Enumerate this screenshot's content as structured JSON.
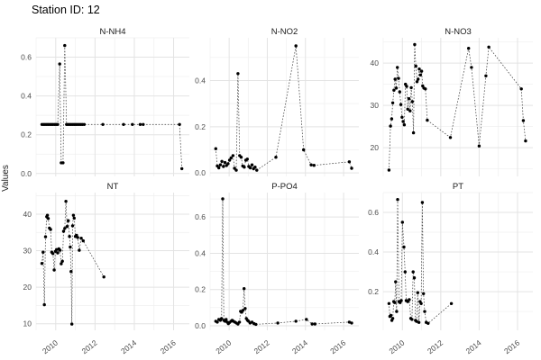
{
  "title": "Station ID: 12",
  "ylabel": "Values",
  "chart_data": {
    "type": "scatter",
    "title": "Station ID: 12",
    "ylabel": "Values",
    "xlabel": "",
    "line_style": "dotted",
    "legend": "none",
    "grid": "on",
    "point_color": "#000000",
    "line_color": "#4d4d4d",
    "grid_major_color": "#e3e3e3",
    "grid_minor_color": "#efefef",
    "axis_text_color": "#4d4d4d",
    "facet_title_color": "#1a1a1a",
    "x_domain": [
      2009.0,
      2016.8
    ],
    "xtick_values": [
      2010,
      2012,
      2014,
      2016
    ],
    "xtick_labels": [
      "2010",
      "2012",
      "2014",
      "2016"
    ],
    "xminor_values": [
      2009,
      2011,
      2013,
      2015
    ],
    "facets": [
      {
        "label": "N-NH4",
        "ydomain": [
          -0.015,
          0.7
        ],
        "ytick_values": [
          0.0,
          0.2,
          0.4,
          0.6
        ],
        "ytick_labels": [
          "0.0",
          "0.2",
          "0.4",
          "0.6"
        ],
        "points": [
          [
            2009.3,
            0.253
          ],
          [
            2009.38,
            0.253
          ],
          [
            2009.46,
            0.253
          ],
          [
            2009.54,
            0.253
          ],
          [
            2009.62,
            0.253
          ],
          [
            2009.7,
            0.253
          ],
          [
            2009.78,
            0.253
          ],
          [
            2009.86,
            0.253
          ],
          [
            2009.94,
            0.253
          ],
          [
            2010.02,
            0.253
          ],
          [
            2010.1,
            0.253
          ],
          [
            2010.2,
            0.565
          ],
          [
            2010.28,
            0.055
          ],
          [
            2010.37,
            0.055
          ],
          [
            2010.46,
            0.66
          ],
          [
            2010.55,
            0.253
          ],
          [
            2010.63,
            0.253
          ],
          [
            2010.71,
            0.253
          ],
          [
            2010.79,
            0.253
          ],
          [
            2010.87,
            0.253
          ],
          [
            2010.95,
            0.253
          ],
          [
            2011.03,
            0.253
          ],
          [
            2011.11,
            0.253
          ],
          [
            2011.2,
            0.253
          ],
          [
            2011.28,
            0.253
          ],
          [
            2011.36,
            0.253
          ],
          [
            2011.45,
            0.253
          ],
          [
            2012.4,
            0.253
          ],
          [
            2013.45,
            0.253
          ],
          [
            2013.9,
            0.253
          ],
          [
            2014.3,
            0.253
          ],
          [
            2014.45,
            0.253
          ],
          [
            2016.3,
            0.253
          ],
          [
            2016.42,
            0.025
          ]
        ]
      },
      {
        "label": "N-NO2",
        "ydomain": [
          -0.015,
          0.585
        ],
        "ytick_values": [
          0.0,
          0.2,
          0.4
        ],
        "ytick_labels": [
          "0.0",
          "0.2",
          "0.4"
        ],
        "points": [
          [
            2009.3,
            0.105
          ],
          [
            2009.38,
            0.03
          ],
          [
            2009.46,
            0.022
          ],
          [
            2009.54,
            0.035
          ],
          [
            2009.62,
            0.05
          ],
          [
            2009.7,
            0.028
          ],
          [
            2009.78,
            0.045
          ],
          [
            2009.86,
            0.032
          ],
          [
            2009.94,
            0.04
          ],
          [
            2010.02,
            0.055
          ],
          [
            2010.1,
            0.065
          ],
          [
            2010.2,
            0.075
          ],
          [
            2010.28,
            0.02
          ],
          [
            2010.37,
            0.012
          ],
          [
            2010.46,
            0.43
          ],
          [
            2010.55,
            0.075
          ],
          [
            2010.63,
            0.068
          ],
          [
            2010.71,
            0.03
          ],
          [
            2010.79,
            0.025
          ],
          [
            2010.87,
            0.055
          ],
          [
            2010.95,
            0.06
          ],
          [
            2011.03,
            0.028
          ],
          [
            2011.11,
            0.022
          ],
          [
            2011.2,
            0.035
          ],
          [
            2011.28,
            0.018
          ],
          [
            2011.36,
            0.025
          ],
          [
            2011.45,
            0.012
          ],
          [
            2012.45,
            0.068
          ],
          [
            2013.5,
            0.55
          ],
          [
            2013.9,
            0.1
          ],
          [
            2014.3,
            0.035
          ],
          [
            2014.45,
            0.033
          ],
          [
            2016.3,
            0.048
          ],
          [
            2016.42,
            0.02
          ]
        ]
      },
      {
        "label": "N-NO3",
        "ydomain": [
          13.2,
          46.0
        ],
        "ytick_values": [
          20,
          30,
          40
        ],
        "ytick_labels": [
          "20",
          "30",
          "40"
        ],
        "points": [
          [
            2009.3,
            14.7
          ],
          [
            2009.38,
            25.1
          ],
          [
            2009.44,
            26.8
          ],
          [
            2009.5,
            30.6
          ],
          [
            2009.56,
            33.6
          ],
          [
            2009.62,
            36.2
          ],
          [
            2009.68,
            34.1
          ],
          [
            2009.74,
            39.0
          ],
          [
            2009.8,
            36.4
          ],
          [
            2009.86,
            33.2
          ],
          [
            2009.92,
            30.2
          ],
          [
            2009.98,
            27.2
          ],
          [
            2010.04,
            26.2
          ],
          [
            2010.1,
            25.4
          ],
          [
            2010.16,
            35.0
          ],
          [
            2010.22,
            34.5
          ],
          [
            2010.28,
            29.1
          ],
          [
            2010.34,
            31.6
          ],
          [
            2010.4,
            28.7
          ],
          [
            2010.46,
            34.2
          ],
          [
            2010.52,
            30.9
          ],
          [
            2010.58,
            23.5
          ],
          [
            2010.64,
            44.4
          ],
          [
            2010.7,
            39.3
          ],
          [
            2010.76,
            35.6
          ],
          [
            2010.82,
            36.2
          ],
          [
            2010.88,
            38.6
          ],
          [
            2010.94,
            37.2
          ],
          [
            2011.0,
            38.1
          ],
          [
            2011.06,
            34.6
          ],
          [
            2011.12,
            34.1
          ],
          [
            2011.2,
            33.9
          ],
          [
            2011.3,
            26.5
          ],
          [
            2012.5,
            22.4
          ],
          [
            2013.45,
            43.5
          ],
          [
            2013.6,
            39.0
          ],
          [
            2014.0,
            20.4
          ],
          [
            2014.35,
            37.0
          ],
          [
            2014.5,
            43.8
          ],
          [
            2016.2,
            33.9
          ],
          [
            2016.3,
            26.4
          ],
          [
            2016.42,
            21.6
          ]
        ]
      },
      {
        "label": "NT",
        "ydomain": [
          8.2,
          45.9
        ],
        "ytick_values": [
          10,
          20,
          30,
          40
        ],
        "ytick_labels": [
          "10",
          "20",
          "30",
          "40"
        ],
        "points": [
          [
            2009.3,
            26.5
          ],
          [
            2009.36,
            29.6
          ],
          [
            2009.42,
            15.2
          ],
          [
            2009.48,
            33.8
          ],
          [
            2009.54,
            39.3
          ],
          [
            2009.58,
            39.7
          ],
          [
            2009.62,
            38.8
          ],
          [
            2009.68,
            36.2
          ],
          [
            2009.74,
            35.8
          ],
          [
            2009.8,
            29.6
          ],
          [
            2009.86,
            29.2
          ],
          [
            2009.92,
            24.7
          ],
          [
            2009.98,
            29.8
          ],
          [
            2010.04,
            30.3
          ],
          [
            2010.1,
            29.4
          ],
          [
            2010.16,
            30.5
          ],
          [
            2010.22,
            30.1
          ],
          [
            2010.28,
            26.4
          ],
          [
            2010.34,
            27.1
          ],
          [
            2010.4,
            35.3
          ],
          [
            2010.46,
            36.1
          ],
          [
            2010.52,
            43.5
          ],
          [
            2010.58,
            36.6
          ],
          [
            2010.64,
            38.2
          ],
          [
            2010.7,
            33.9
          ],
          [
            2010.74,
            31.0
          ],
          [
            2010.78,
            24.3
          ],
          [
            2010.82,
            9.9
          ],
          [
            2010.86,
            36.8
          ],
          [
            2010.9,
            39.7
          ],
          [
            2010.94,
            38.9
          ],
          [
            2011.0,
            33.9
          ],
          [
            2011.06,
            34.2
          ],
          [
            2011.12,
            33.6
          ],
          [
            2011.2,
            30.1
          ],
          [
            2011.3,
            33.4
          ],
          [
            2011.4,
            32.7
          ],
          [
            2012.45,
            22.8
          ]
        ]
      },
      {
        "label": "P-PO4",
        "ydomain": [
          -0.025,
          0.735
        ],
        "ytick_values": [
          0.0,
          0.2,
          0.4,
          0.6
        ],
        "ytick_labels": [
          "0.0",
          "0.2",
          "0.4",
          "0.6"
        ],
        "points": [
          [
            2009.3,
            0.025
          ],
          [
            2009.38,
            0.02
          ],
          [
            2009.46,
            0.035
          ],
          [
            2009.54,
            0.03
          ],
          [
            2009.6,
            0.04
          ],
          [
            2009.66,
            0.7
          ],
          [
            2009.72,
            0.03
          ],
          [
            2009.78,
            0.025
          ],
          [
            2009.84,
            0.035
          ],
          [
            2009.9,
            0.02
          ],
          [
            2009.96,
            0.012
          ],
          [
            2010.02,
            0.018
          ],
          [
            2010.1,
            0.025
          ],
          [
            2010.16,
            0.03
          ],
          [
            2010.22,
            0.025
          ],
          [
            2010.3,
            0.02
          ],
          [
            2010.38,
            0.015
          ],
          [
            2010.46,
            0.01
          ],
          [
            2010.54,
            0.02
          ],
          [
            2010.6,
            0.08
          ],
          [
            2010.66,
            0.075
          ],
          [
            2010.72,
            0.085
          ],
          [
            2010.78,
            0.205
          ],
          [
            2010.84,
            0.095
          ],
          [
            2010.9,
            0.04
          ],
          [
            2010.96,
            0.03
          ],
          [
            2011.02,
            0.025
          ],
          [
            2011.1,
            0.015
          ],
          [
            2011.2,
            0.02
          ],
          [
            2011.3,
            0.012
          ],
          [
            2011.4,
            0.008
          ],
          [
            2012.55,
            0.015
          ],
          [
            2013.5,
            0.025
          ],
          [
            2014.05,
            0.035
          ],
          [
            2014.35,
            0.01
          ],
          [
            2014.5,
            0.01
          ],
          [
            2016.3,
            0.02
          ],
          [
            2016.42,
            0.015
          ]
        ]
      },
      {
        "label": "PT",
        "ydomain": [
          0.005,
          0.7
        ],
        "ytick_values": [
          0.2,
          0.4,
          0.6
        ],
        "ytick_labels": [
          "0.2",
          "0.4",
          "0.6"
        ],
        "points": [
          [
            2009.3,
            0.14
          ],
          [
            2009.35,
            0.075
          ],
          [
            2009.4,
            0.08
          ],
          [
            2009.45,
            0.055
          ],
          [
            2009.5,
            0.065
          ],
          [
            2009.55,
            0.15
          ],
          [
            2009.6,
            0.145
          ],
          [
            2009.65,
            0.25
          ],
          [
            2009.7,
            0.1
          ],
          [
            2009.75,
            0.665
          ],
          [
            2009.82,
            0.15
          ],
          [
            2009.88,
            0.145
          ],
          [
            2009.94,
            0.155
          ],
          [
            2010.0,
            0.55
          ],
          [
            2010.08,
            0.425
          ],
          [
            2010.14,
            0.3
          ],
          [
            2010.2,
            0.155
          ],
          [
            2010.28,
            0.15
          ],
          [
            2010.36,
            0.16
          ],
          [
            2010.44,
            0.065
          ],
          [
            2010.5,
            0.06
          ],
          [
            2010.56,
            0.3
          ],
          [
            2010.62,
            0.27
          ],
          [
            2010.68,
            0.055
          ],
          [
            2010.74,
            0.05
          ],
          [
            2010.8,
            0.195
          ],
          [
            2010.86,
            0.045
          ],
          [
            2010.92,
            0.15
          ],
          [
            2010.98,
            0.14
          ],
          [
            2011.04,
            0.65
          ],
          [
            2011.1,
            0.19
          ],
          [
            2011.16,
            0.1
          ],
          [
            2011.24,
            0.045
          ],
          [
            2011.34,
            0.04
          ],
          [
            2012.55,
            0.14
          ]
        ]
      }
    ]
  }
}
